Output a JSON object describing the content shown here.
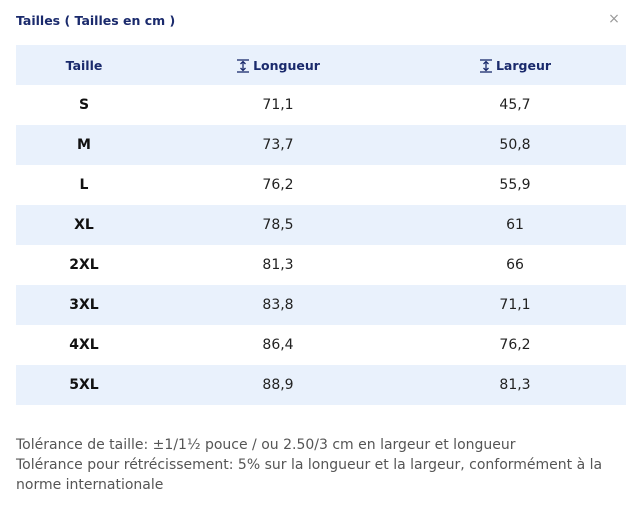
{
  "header": {
    "title": "Tailles ( Tailles en cm )",
    "close": "×"
  },
  "table": {
    "columns": [
      "Taille",
      "Longueur",
      "Largeur"
    ],
    "rows": [
      [
        "S",
        "71,1",
        "45,7"
      ],
      [
        "M",
        "73,7",
        "50,8"
      ],
      [
        "L",
        "76,2",
        "55,9"
      ],
      [
        "XL",
        "78,5",
        "61"
      ],
      [
        "2XL",
        "81,3",
        "66"
      ],
      [
        "3XL",
        "83,8",
        "71,1"
      ],
      [
        "4XL",
        "86,4",
        "76,2"
      ],
      [
        "5XL",
        "88,9",
        "81,3"
      ]
    ]
  },
  "notes": [
    "Tolérance de taille: ±1/1½ pouce / ou 2.50/3 cm en largeur et longueur",
    "Tolérance pour rétrécissement: 5% sur la longueur et la largeur, conformément à la norme internationale"
  ]
}
